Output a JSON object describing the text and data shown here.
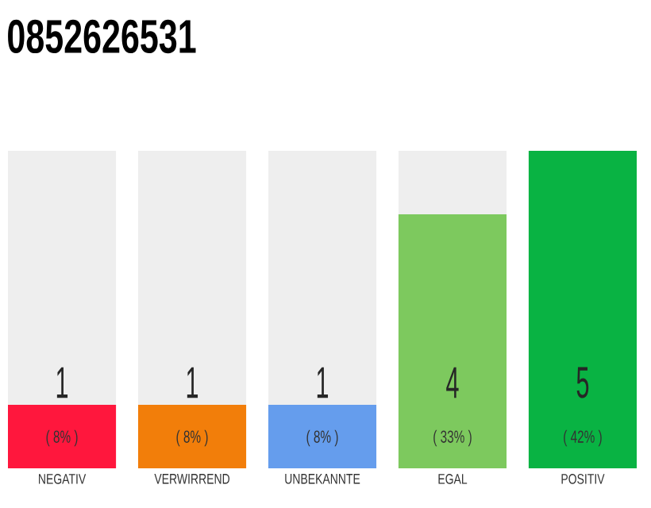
{
  "chart_data": {
    "type": "bar",
    "title": "0852626531",
    "categories": [
      "NEGATIV",
      "VERWIRREND",
      "UNBEKANNTE",
      "EGAL",
      "POSITIV"
    ],
    "values": [
      1,
      1,
      1,
      4,
      5
    ],
    "colors": [
      "#ff173d",
      "#f27e0a",
      "#659ded",
      "#7dc95e",
      "#09b343"
    ],
    "ylim": [
      0,
      5
    ],
    "tick_labels": "x",
    "data_labels": true,
    "annotations": [
      "( 8% )",
      "( 8% )",
      "( 8% )",
      "( 33% )",
      "( 42% )"
    ]
  }
}
